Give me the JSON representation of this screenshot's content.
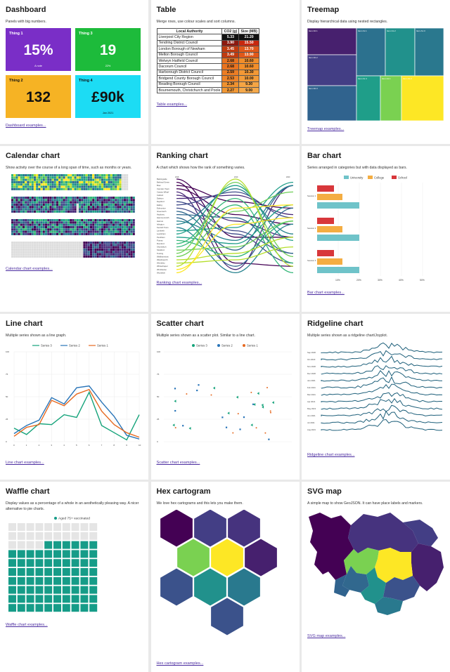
{
  "cards": {
    "dashboard": {
      "title": "Dashboard",
      "desc": "Panels with big numbers.",
      "link": "Dashboard examples...",
      "panels": [
        {
          "label": "Thing 1",
          "value": "15%",
          "note": "A note",
          "bg": "#7a2ec7"
        },
        {
          "label": "Thing 3",
          "value": "19",
          "note": "22%",
          "bg": "#1dbb3b"
        },
        {
          "label": "Thing 2",
          "value": "132",
          "note": "",
          "bg": "#f6b324",
          "dark": true
        },
        {
          "label": "Thing 4",
          "value": "£90k",
          "note": "Jan 2021",
          "bg": "#1cdcf4",
          "dark": true
        }
      ]
    },
    "table": {
      "title": "Table",
      "desc": "Merge rows, use colour scales and sort columns.",
      "link": "Table examples...",
      "headers": [
        "Local Authority",
        "CO2 (g)",
        "Size (MB)"
      ],
      "rows": [
        [
          "Liverpool City Region",
          "5.33",
          "21.20"
        ],
        [
          "Tendring District Council",
          "3.90",
          "15.50"
        ],
        [
          "London Borough of Newham",
          "3.45",
          "13.70"
        ],
        [
          "Melton Borough Council",
          "3.49",
          "13.90"
        ],
        [
          "Welwyn Hatfield Council",
          "2.68",
          "10.60"
        ],
        [
          "Dacorum Council",
          "2.68",
          "10.60"
        ],
        [
          "Harborough District Council",
          "2.59",
          "10.30"
        ],
        [
          "Bridgend County Borough Council",
          "2.53",
          "10.00"
        ],
        [
          "Reading Borough Council",
          "2.34",
          "9.30"
        ],
        [
          "Bournemouth, Christchurch and Poole",
          "2.27",
          "9.00"
        ]
      ]
    },
    "treemap": {
      "title": "Treemap",
      "desc": "Display hierarchical data using nested rectangles.",
      "link": "Treemap examples...",
      "cells": [
        {
          "label": "Item A0.1",
          "color": "#47206e"
        },
        {
          "label": "Item A0.2",
          "color": "#433e85"
        },
        {
          "label": "Item A0.3",
          "color": "#30638e"
        },
        {
          "label": "Item A1.1",
          "color": "#2c718e"
        },
        {
          "label": "Item A1.2",
          "color": "#21918c"
        },
        {
          "label": "Item A1.3",
          "color": "#2a788e"
        },
        {
          "label": "Item A1.4",
          "color": "#1f9e89"
        },
        {
          "label": "Item A2.1",
          "color": "#7ad151"
        },
        {
          "label": "Item A2.2",
          "color": "#fde725"
        }
      ]
    },
    "calendar": {
      "title": "Calendar chart",
      "desc": "Show activity over the course of a long span of time, such as months or years.",
      "link": "Calendar chart examples..."
    },
    "ranking": {
      "title": "Ranking chart",
      "desc": "A chart which shows how the rank of something varies.",
      "link": "Ranking chart examples...",
      "labels": [
        "Barkingside",
        "Bethnal Green",
        "Bow",
        "Camden Town",
        "Canary Wharf",
        "Catford",
        "Dalston",
        "Deptford",
        "Ealing",
        "Edmonton",
        "Greenwich",
        "Hackney",
        "Hammersmith",
        "Harrow",
        "Islington",
        "Kentish Town",
        "Lambeth",
        "Lewisham",
        "Peckham",
        "Putney",
        "Romford",
        "Shoreditch",
        "Stratford",
        "Tooting",
        "Walthamstow",
        "Wandsworth",
        "Wembley",
        "Whitechapel",
        "Wimbledon",
        "Woolwich"
      ]
    },
    "bar": {
      "title": "Bar chart",
      "desc": "Series arranged in categories but with data displayed as bars.",
      "link": "Bar chart examples...",
      "legend": [
        "University",
        "College",
        "School"
      ],
      "colors": [
        "#6fc3c9",
        "#f4ad42",
        "#d8373b"
      ],
      "groups": [
        "Session 1",
        "Session 2",
        "Session 3"
      ],
      "xticks": [
        "10%",
        "20%",
        "30%",
        "40%",
        "50%"
      ]
    },
    "line": {
      "title": "Line chart",
      "desc": "Multiple series shown as a line graph.",
      "link": "Line chart examples...",
      "legend": [
        "Series 3",
        "Series 2",
        "Series 1"
      ]
    },
    "scatter": {
      "title": "Scatter chart",
      "desc": "Multiple series shown as a scatter plot. Similar to a line chart.",
      "link": "Scatter chart examples...",
      "legend": [
        "Series 3",
        "Series 2",
        "Series 1"
      ]
    },
    "ridgeline": {
      "title": "Ridgeline chart",
      "desc": "Multiple series shown as a ridgeline chart/Joyplot.",
      "link": "Ridgeline chart examples...",
      "rows": [
        "Sep 2020",
        "Oct 2020",
        "Nov 2020",
        "Dec 2020",
        "Jan 2021",
        "Feb 2021",
        "Mar 2021",
        "Apr 2021",
        "May 2021",
        "Jun 2021",
        "Jul 2021",
        "Aug 2021"
      ]
    },
    "waffle": {
      "title": "Waffle chart",
      "desc": "Display values as a percentage of a whole in an aesthetically pleasing way. A nicer alternative to pie charts.",
      "link": "Waffle chart examples...",
      "legend": "Aged 75+ vaccinated",
      "percent": 76
    },
    "hex": {
      "title": "Hex cartogram",
      "desc": "We love hex cartograms and this lets you make them.",
      "link": "Hex cartogram examples..."
    },
    "svgmap": {
      "title": "SVG map",
      "desc": "A simple map to show GeoJSON. It can have place labels and markers.",
      "link": "SVG map examples..."
    }
  },
  "chart_data": [
    {
      "type": "line",
      "title": "Line chart",
      "series": [
        {
          "name": "Series 3",
          "color": "#14a37a",
          "values": [
            15,
            8,
            20,
            19,
            30,
            27,
            55,
            18,
            10,
            2,
            30
          ]
        },
        {
          "name": "Series 2",
          "color": "#2874b8",
          "values": [
            9,
            18,
            24,
            49,
            42,
            60,
            62,
            44,
            28,
            7,
            3
          ]
        },
        {
          "name": "Series 1",
          "color": "#e66920",
          "values": [
            6,
            16,
            19,
            46,
            40,
            53,
            58,
            34,
            19,
            10,
            5
          ]
        }
      ],
      "x": [
        0,
        1,
        2,
        3,
        4,
        5,
        6,
        7,
        8,
        9,
        10
      ],
      "ylim": [
        0,
        100
      ]
    },
    {
      "type": "bar",
      "title": "Bar chart",
      "categories": [
        "Session 1",
        "Session 2",
        "Session 3"
      ],
      "series": [
        {
          "name": "University",
          "values": [
            25,
            25,
            25
          ]
        },
        {
          "name": "College",
          "values": [
            15,
            15,
            15
          ]
        },
        {
          "name": "School",
          "values": [
            10,
            10,
            10
          ]
        }
      ]
    }
  ]
}
